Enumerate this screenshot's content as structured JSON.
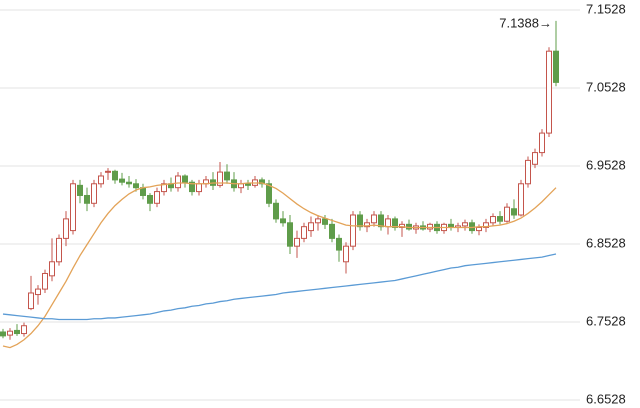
{
  "chart_data": {
    "type": "candlestick",
    "annotation": "7.1388→",
    "ylim": [
      6.6528,
      7.1528
    ],
    "yticks": [
      6.6528,
      6.7528,
      6.8528,
      6.9528,
      7.0528,
      7.1528
    ],
    "grid": true,
    "up_color": "#c4554c",
    "down_color": "#5f9c4a",
    "open": [
      6.74,
      6.736,
      6.742,
      6.738,
      6.77,
      6.788,
      6.795,
      6.812,
      6.83,
      6.86,
      6.87,
      6.928,
      6.915,
      6.905,
      6.93,
      6.945,
      6.946,
      6.936,
      6.932,
      6.93,
      6.925,
      6.915,
      6.905,
      6.92,
      6.93,
      6.925,
      6.94,
      6.932,
      6.92,
      6.93,
      6.935,
      6.928,
      6.945,
      6.935,
      6.925,
      6.93,
      6.928,
      6.935,
      6.93,
      6.905,
      6.885,
      6.88,
      6.85,
      6.86,
      6.87,
      6.88,
      6.885,
      6.878,
      6.86,
      6.83,
      6.85,
      6.89,
      6.875,
      6.88,
      6.89,
      6.875,
      6.885,
      6.874,
      6.878,
      6.872,
      6.876,
      6.872,
      6.878,
      6.87,
      6.878,
      6.874,
      6.876,
      6.88,
      6.87,
      6.874,
      6.88,
      6.888,
      6.882,
      6.898,
      6.89,
      6.93,
      6.955,
      6.97,
      6.995,
      7.1
    ],
    "high": [
      6.744,
      6.745,
      6.75,
      6.752,
      6.812,
      6.8,
      6.82,
      6.86,
      6.865,
      6.895,
      6.935,
      6.935,
      6.925,
      6.935,
      6.945,
      6.95,
      6.948,
      6.944,
      6.94,
      6.936,
      6.93,
      6.918,
      6.925,
      6.935,
      6.938,
      6.945,
      6.942,
      6.935,
      6.935,
      6.94,
      6.945,
      6.958,
      6.955,
      6.945,
      6.935,
      6.935,
      6.94,
      6.938,
      6.935,
      6.91,
      6.895,
      6.89,
      6.87,
      6.88,
      6.888,
      6.89,
      6.89,
      6.885,
      6.865,
      6.855,
      6.895,
      6.895,
      6.885,
      6.895,
      6.895,
      6.89,
      6.888,
      6.882,
      6.884,
      6.88,
      6.882,
      6.88,
      6.882,
      6.88,
      6.885,
      6.88,
      6.884,
      6.884,
      6.878,
      6.885,
      6.892,
      6.895,
      6.905,
      6.91,
      6.935,
      6.965,
      6.975,
      7.0,
      7.105,
      7.1388
    ],
    "low": [
      6.732,
      6.73,
      6.735,
      6.734,
      6.768,
      6.775,
      6.79,
      6.805,
      6.825,
      6.85,
      6.865,
      6.905,
      6.895,
      6.9,
      6.925,
      6.935,
      6.93,
      6.928,
      6.925,
      6.92,
      6.91,
      6.895,
      6.9,
      6.915,
      6.92,
      6.92,
      6.925,
      6.915,
      6.915,
      6.925,
      6.922,
      6.925,
      6.93,
      6.92,
      6.918,
      6.922,
      6.925,
      6.925,
      6.9,
      6.88,
      6.875,
      6.84,
      6.835,
      6.855,
      6.862,
      6.87,
      6.872,
      6.855,
      6.83,
      6.815,
      6.845,
      6.87,
      6.868,
      6.875,
      6.87,
      6.865,
      6.87,
      6.862,
      6.87,
      6.866,
      6.87,
      6.868,
      6.866,
      6.866,
      6.87,
      6.868,
      6.87,
      6.866,
      6.864,
      6.868,
      6.876,
      6.878,
      6.88,
      6.885,
      6.888,
      6.925,
      6.95,
      6.965,
      6.99,
      7.055
    ],
    "close": [
      6.735,
      6.741,
      6.738,
      6.748,
      6.79,
      6.795,
      6.815,
      6.83,
      6.86,
      6.885,
      6.93,
      6.915,
      6.905,
      6.93,
      6.94,
      6.946,
      6.935,
      6.932,
      6.93,
      6.925,
      6.915,
      6.905,
      6.92,
      6.93,
      6.925,
      6.94,
      6.932,
      6.92,
      6.93,
      6.935,
      6.928,
      6.945,
      6.935,
      6.925,
      6.93,
      6.928,
      6.935,
      6.93,
      6.905,
      6.885,
      6.88,
      6.85,
      6.86,
      6.875,
      6.88,
      6.885,
      6.878,
      6.86,
      6.845,
      6.85,
      6.89,
      6.875,
      6.88,
      6.89,
      6.875,
      6.885,
      6.874,
      6.878,
      6.872,
      6.876,
      6.872,
      6.878,
      6.87,
      6.878,
      6.874,
      6.876,
      6.88,
      6.87,
      6.874,
      6.88,
      6.888,
      6.882,
      6.9,
      6.89,
      6.93,
      6.96,
      6.97,
      6.995,
      7.1,
      7.06
    ],
    "lines": [
      {
        "color": "#e3a358",
        "values": [
          6.722,
          6.72,
          6.724,
          6.73,
          6.738,
          6.748,
          6.76,
          6.775,
          6.79,
          6.805,
          6.822,
          6.838,
          6.852,
          6.866,
          6.88,
          6.892,
          6.902,
          6.91,
          6.917,
          6.922,
          6.925,
          6.926,
          6.928,
          6.929,
          6.93,
          6.931,
          6.931,
          6.93,
          6.93,
          6.93,
          6.931,
          6.931,
          6.931,
          6.93,
          6.93,
          6.931,
          6.931,
          6.931,
          6.928,
          6.924,
          6.918,
          6.911,
          6.904,
          6.898,
          6.893,
          6.889,
          6.886,
          6.883,
          6.88,
          6.877,
          6.876,
          6.876,
          6.876,
          6.877,
          6.876,
          6.875,
          6.875,
          6.875,
          6.874,
          6.874,
          6.874,
          6.874,
          6.874,
          6.874,
          6.874,
          6.874,
          6.874,
          6.874,
          6.875,
          6.875,
          6.876,
          6.877,
          6.879,
          6.882,
          6.886,
          6.892,
          6.899,
          6.907,
          6.916,
          6.925
        ]
      },
      {
        "color": "#5b9bd5",
        "values": [
          6.763,
          6.762,
          6.761,
          6.76,
          6.759,
          6.758,
          6.757,
          6.757,
          6.756,
          6.756,
          6.756,
          6.756,
          6.756,
          6.757,
          6.757,
          6.758,
          6.758,
          6.759,
          6.76,
          6.761,
          6.762,
          6.763,
          6.765,
          6.767,
          6.768,
          6.77,
          6.771,
          6.773,
          6.774,
          6.776,
          6.777,
          6.779,
          6.78,
          6.782,
          6.783,
          6.784,
          6.785,
          6.786,
          6.787,
          6.788,
          6.79,
          6.791,
          6.792,
          6.793,
          6.794,
          6.795,
          6.796,
          6.797,
          6.798,
          6.799,
          6.8,
          6.801,
          6.802,
          6.803,
          6.804,
          6.805,
          6.806,
          6.808,
          6.81,
          6.812,
          6.814,
          6.816,
          6.818,
          6.82,
          6.822,
          6.823,
          6.825,
          6.826,
          6.827,
          6.828,
          6.829,
          6.83,
          6.831,
          6.832,
          6.833,
          6.834,
          6.835,
          6.836,
          6.838,
          6.84
        ]
      }
    ]
  }
}
